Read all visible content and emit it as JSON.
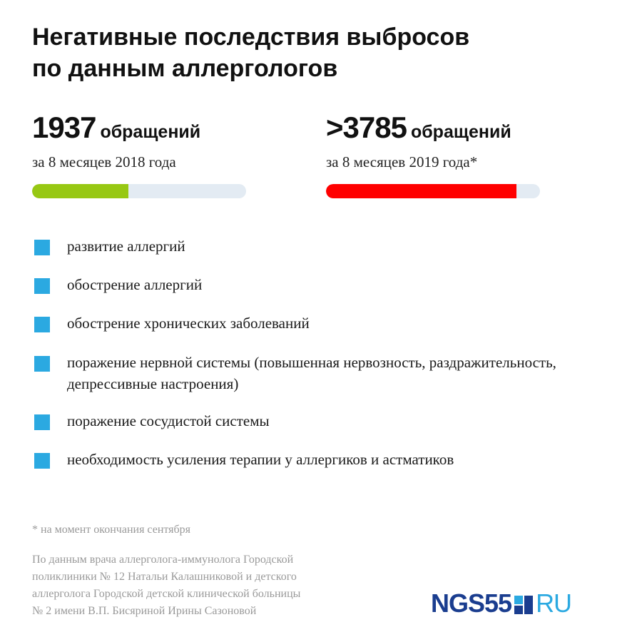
{
  "title": {
    "line1": "Негативные последствия выбросов",
    "line2": "по данным аллергологов"
  },
  "stats": [
    {
      "number": "1937",
      "unit": "обращений",
      "period": "за 8 месяцев 2018 года",
      "bar_fraction": 0.45,
      "bar_color": "#97c813"
    },
    {
      "number": ">3785",
      "unit": "обращений",
      "period": "за 8 месяцев 2019 года*",
      "bar_fraction": 0.89,
      "bar_color": "#ff0000"
    }
  ],
  "bar_track_color": "#e3ebf3",
  "bullet_color": "#2ba9e1",
  "effects": [
    "развитие аллергий",
    "обострение аллергий",
    "обострение хронических заболеваний",
    "поражение нервной системы (повышенная нервозность, раздражительность, депрессивные настроения)",
    "поражение сосудистой системы",
    "необходимость усиления терапии у аллергиков и астматиков"
  ],
  "footnote": "* на момент окончания сентября",
  "source": {
    "line1": "По данным врача аллерголога-иммунолога Городской",
    "line2": "поликлиники № 12 Натальи Калашниковой и детского",
    "line3": "аллерголога Городской детской клинической больницы",
    "line4": "№ 2 имени В.П. Бисяриной Ирины Сазоновой"
  },
  "logo": {
    "left": "NGS55",
    "right": "RU",
    "color_left": "#1a3d8f",
    "color_right": "#2ba9e1"
  }
}
